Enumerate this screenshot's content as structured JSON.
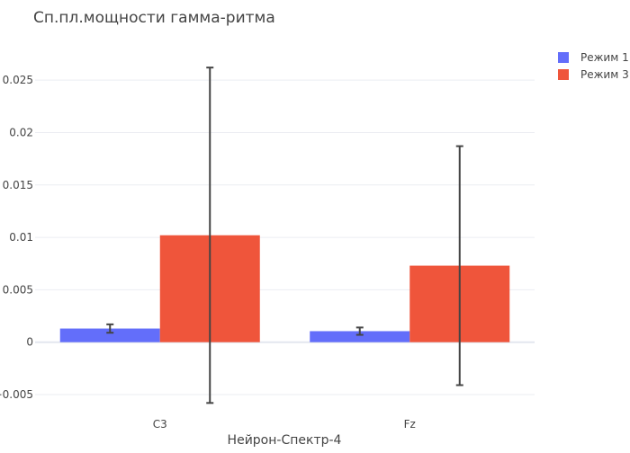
{
  "chart_data": {
    "type": "bar",
    "title": "Сп.пл.мощности гамма-ритма",
    "xlabel": "Нейрон-Спектр-4",
    "ylabel": "",
    "categories": [
      "C3",
      "Fz"
    ],
    "series": [
      {
        "name": "Режим 1",
        "color": "#636efa",
        "values": [
          0.0013,
          0.00105
        ],
        "errors": [
          0.0004,
          0.00035
        ]
      },
      {
        "name": "Режим 3",
        "color": "#ef553b",
        "values": [
          0.0102,
          0.0073
        ],
        "errors": [
          0.016,
          0.0114
        ]
      }
    ],
    "ylim": [
      -0.0068,
      0.0275
    ],
    "yticks": [
      -0.005,
      0,
      0.005,
      0.01,
      0.015,
      0.02,
      0.025
    ],
    "ytick_labels": [
      "−0.005",
      "0",
      "0.005",
      "0.01",
      "0.015",
      "0.02",
      "0.025"
    ],
    "grid": true,
    "legend_position": "top-right"
  }
}
